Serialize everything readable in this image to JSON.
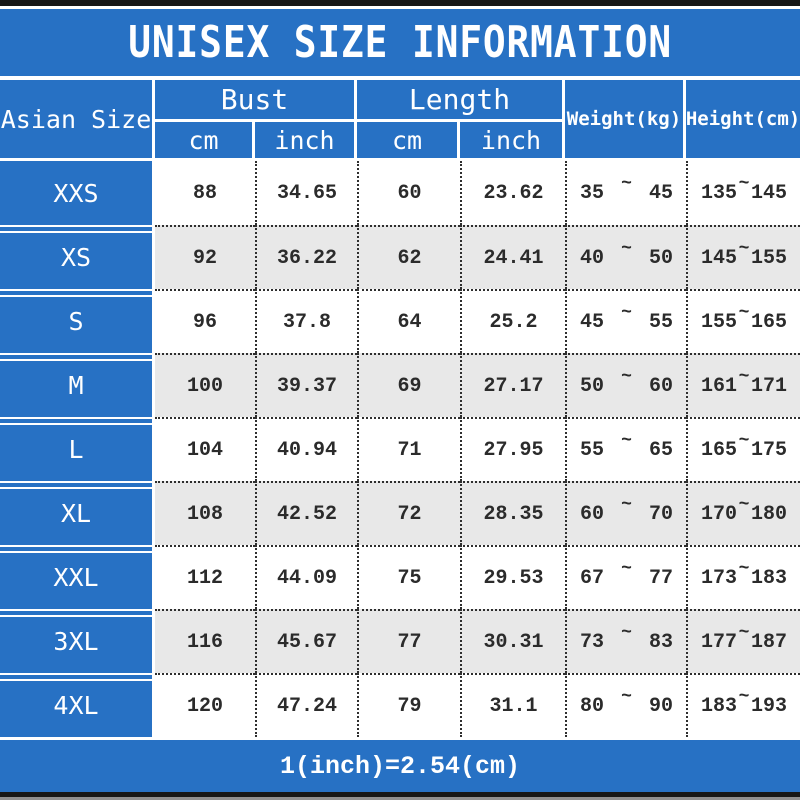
{
  "title": "UNISEX SIZE INFORMATION",
  "symbols": {
    "tilde": "~"
  },
  "colors": {
    "primary_blue": "#2771c4",
    "alt_row": "#e8e8e8",
    "header_text": "#ffffff",
    "data_text": "#2b2b2b"
  },
  "header": {
    "asian_size": "Asian Size",
    "bust": "Bust",
    "length": "Length",
    "weight": "Weight(kg)",
    "height": "Height(cm)",
    "cm": "cm",
    "inch": "inch"
  },
  "rows": [
    {
      "size": "XXS",
      "bust_cm": "88",
      "bust_inch": "34.65",
      "length_cm": "60",
      "length_inch": "23.62",
      "weight_min": "35",
      "weight_max": "45",
      "height_min": "135",
      "height_max": "145"
    },
    {
      "size": "XS",
      "bust_cm": "92",
      "bust_inch": "36.22",
      "length_cm": "62",
      "length_inch": "24.41",
      "weight_min": "40",
      "weight_max": "50",
      "height_min": "145",
      "height_max": "155"
    },
    {
      "size": "S",
      "bust_cm": "96",
      "bust_inch": "37.8",
      "length_cm": "64",
      "length_inch": "25.2",
      "weight_min": "45",
      "weight_max": "55",
      "height_min": "155",
      "height_max": "165"
    },
    {
      "size": "M",
      "bust_cm": "100",
      "bust_inch": "39.37",
      "length_cm": "69",
      "length_inch": "27.17",
      "weight_min": "50",
      "weight_max": "60",
      "height_min": "161",
      "height_max": "171"
    },
    {
      "size": "L",
      "bust_cm": "104",
      "bust_inch": "40.94",
      "length_cm": "71",
      "length_inch": "27.95",
      "weight_min": "55",
      "weight_max": "65",
      "height_min": "165",
      "height_max": "175"
    },
    {
      "size": "XL",
      "bust_cm": "108",
      "bust_inch": "42.52",
      "length_cm": "72",
      "length_inch": "28.35",
      "weight_min": "60",
      "weight_max": "70",
      "height_min": "170",
      "height_max": "180"
    },
    {
      "size": "XXL",
      "bust_cm": "112",
      "bust_inch": "44.09",
      "length_cm": "75",
      "length_inch": "29.53",
      "weight_min": "67",
      "weight_max": "77",
      "height_min": "173",
      "height_max": "183"
    },
    {
      "size": "3XL",
      "bust_cm": "116",
      "bust_inch": "45.67",
      "length_cm": "77",
      "length_inch": "30.31",
      "weight_min": "73",
      "weight_max": "83",
      "height_min": "177",
      "height_max": "187"
    },
    {
      "size": "4XL",
      "bust_cm": "120",
      "bust_inch": "47.24",
      "length_cm": "79",
      "length_inch": "31.1",
      "weight_min": "80",
      "weight_max": "90",
      "height_min": "183",
      "height_max": "193"
    }
  ],
  "footer": {
    "note": "1(inch)=2.54(cm)"
  }
}
